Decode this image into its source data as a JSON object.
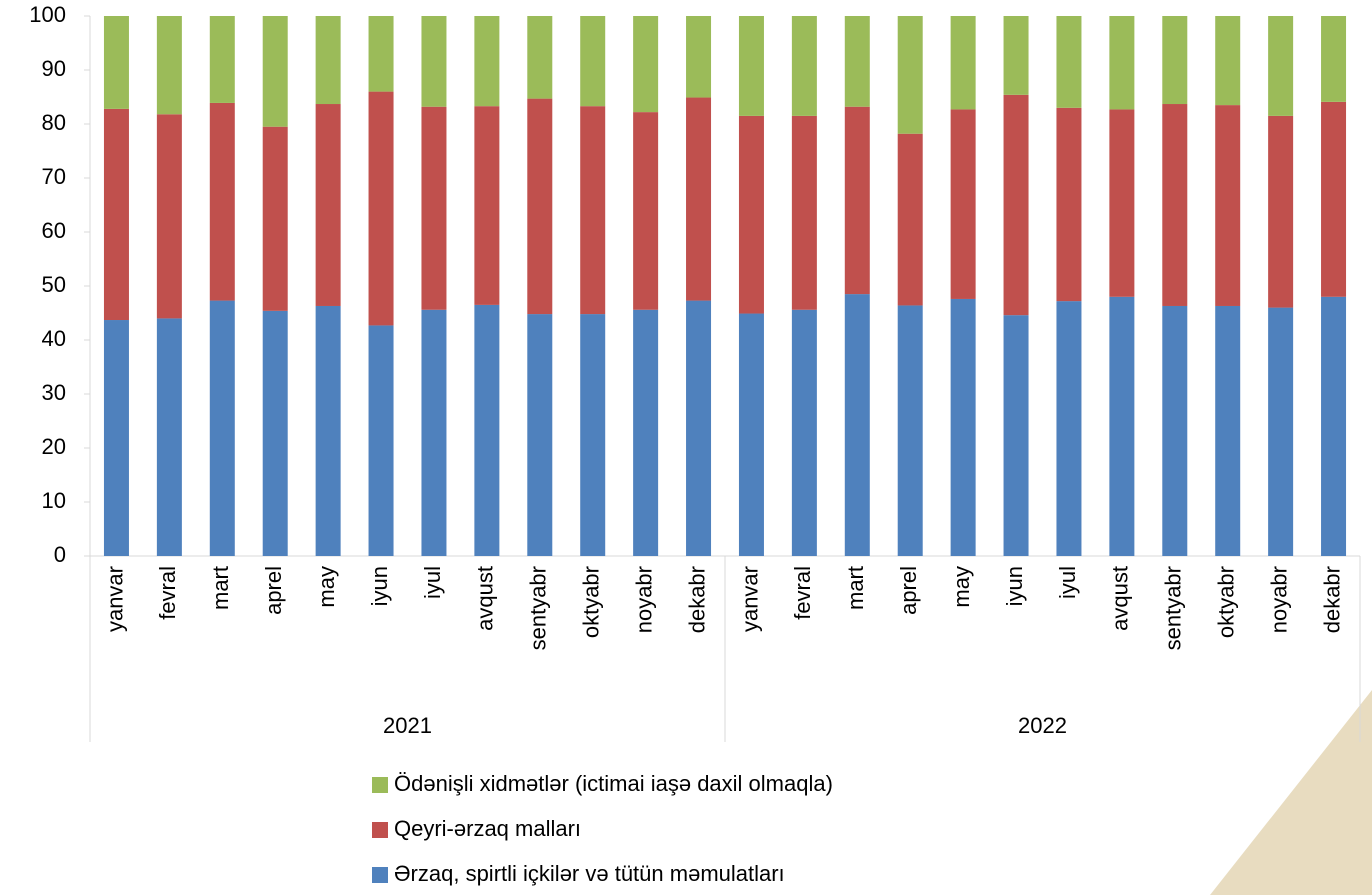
{
  "chart_data": {
    "type": "stacked_bar",
    "categories": [
      "yanvar",
      "fevral",
      "mart",
      "aprel",
      "may",
      "iyun",
      "iyul",
      "avqust",
      "sentyabr",
      "oktyabr",
      "noyabr",
      "dekabr",
      "yanvar",
      "fevral",
      "mart",
      "aprel",
      "may",
      "iyun",
      "iyul",
      "avqust",
      "sentyabr",
      "oktyabr",
      "noyabr",
      "dekabr"
    ],
    "groups": [
      "2021",
      "2022"
    ],
    "series": [
      {
        "name": "Ərzaq, spirtli içkilər və tütün məmulatları",
        "color": "#4f81bd",
        "values": [
          43.7,
          44,
          47.3,
          45.4,
          46.3,
          42.7,
          45.6,
          46.5,
          44.8,
          44.8,
          45.6,
          47.3,
          44.9,
          45.6,
          48.5,
          46.4,
          47.6,
          44.6,
          47.2,
          48,
          46.3,
          46.3,
          46,
          48
        ]
      },
      {
        "name": "Qeyri-ərzaq malları",
        "color": "#c0504d",
        "values": [
          39.1,
          37.8,
          36.6,
          34.1,
          37.4,
          43.3,
          37.6,
          36.8,
          39.9,
          38.5,
          36.6,
          37.6,
          36.6,
          35.9,
          34.7,
          31.8,
          35.1,
          40.8,
          35.8,
          34.7,
          37.4,
          37.2,
          35.5,
          36.1
        ]
      },
      {
        "name": "Ödənişli xidmətlər (ictimai iaşə daxil olmaqla)",
        "color": "#9bbb59",
        "values": [
          17.2,
          18.2,
          16.1,
          20.5,
          16.3,
          14,
          16.8,
          16.7,
          15.3,
          16.7,
          17.8,
          15.1,
          18.5,
          18.5,
          16.8,
          21.8,
          17.3,
          14.6,
          17,
          17.3,
          16.3,
          16.5,
          18.5,
          15.9
        ]
      }
    ],
    "ylim": [
      0,
      100
    ],
    "yticks": [
      0,
      10,
      20,
      30,
      40,
      50,
      60,
      70,
      80,
      90,
      100
    ],
    "grid": false
  }
}
